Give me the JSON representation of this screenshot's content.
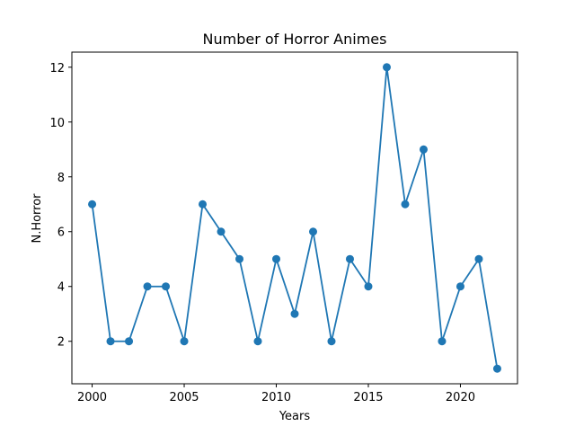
{
  "chart_data": {
    "type": "line",
    "title": "Number of Horror Animes",
    "xlabel": "Years",
    "ylabel": "N.Horror",
    "x": [
      2000,
      2001,
      2002,
      2003,
      2004,
      2005,
      2006,
      2007,
      2008,
      2009,
      2010,
      2011,
      2012,
      2013,
      2014,
      2015,
      2016,
      2017,
      2018,
      2019,
      2020,
      2021,
      2022
    ],
    "series": [
      {
        "values": [
          7,
          2,
          2,
          4,
          4,
          2,
          7,
          6,
          5,
          2,
          5,
          3,
          6,
          2,
          5,
          4,
          12,
          7,
          9,
          2,
          4,
          5,
          1
        ],
        "color": "#1f77b4",
        "marker": "circle"
      }
    ],
    "xlim": [
      1998.9,
      2023.1
    ],
    "ylim": [
      0.45,
      12.55
    ],
    "xticks": [
      2000,
      2005,
      2010,
      2015,
      2020
    ],
    "yticks": [
      2,
      4,
      6,
      8,
      10,
      12
    ],
    "grid": false,
    "legend": "none"
  }
}
